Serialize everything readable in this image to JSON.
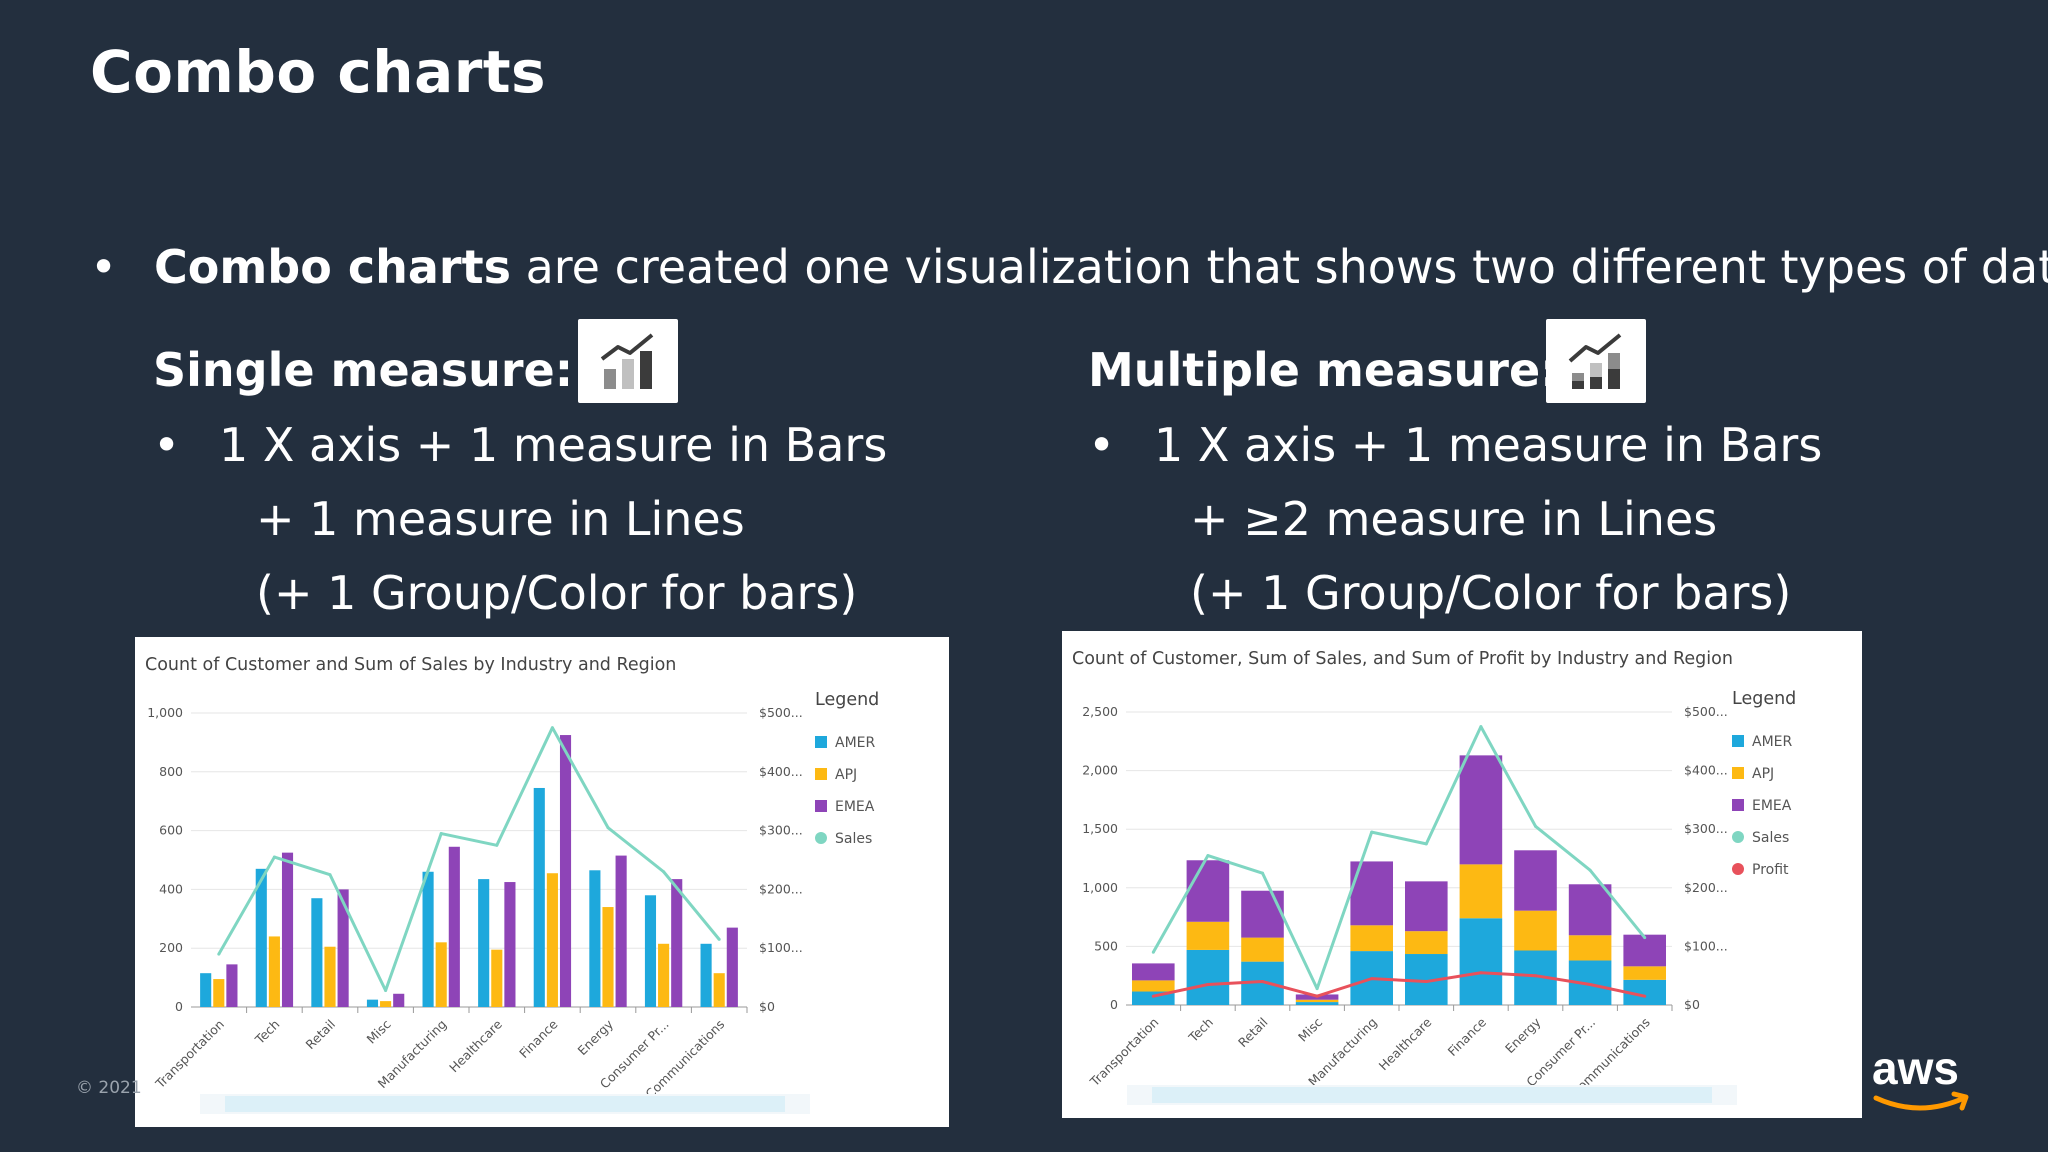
{
  "slide": {
    "title": "Combo charts",
    "bullet": {
      "bold": "Combo charts",
      "rest": " are created one visualization that shows two different types of data."
    },
    "copyright": "© 2021",
    "logo_text": "aws"
  },
  "left": {
    "heading": "Single measure:",
    "icon": "bar-line-combo-icon",
    "line1": "1 X axis + 1 measure in Bars",
    "line2": "+ 1 measure in Lines",
    "line3": "(+ 1  Group/Color for bars)"
  },
  "right": {
    "heading": "Multiple measure:",
    "icon": "stacked-bar-line-combo-icon",
    "line1": "1 X axis + 1 measure in Bars",
    "line2": "+ ≥2 measure in Lines",
    "line3": "(+ 1 Group/Color for bars)"
  },
  "colors": {
    "AMER": "#1ea8dc",
    "APJ": "#fdb913",
    "EMEA": "#8e44b7",
    "Sales": "#7fd6c2",
    "Profit": "#e8515b"
  },
  "chart_data": [
    {
      "type": "bar",
      "mode": "clustered",
      "title": "Count of Customer and Sum of Sales by Industry and Region",
      "legend_title": "Legend",
      "legend": [
        "AMER",
        "APJ",
        "EMEA",
        "Sales"
      ],
      "categories": [
        "Transportation",
        "Tech",
        "Retail",
        "Misc",
        "Manufacturing",
        "Healthcare",
        "Finance",
        "Energy",
        "Consumer Pr...",
        "Communications"
      ],
      "ylim": [
        0,
        1000
      ],
      "yticks": [
        0,
        200,
        400,
        600,
        800,
        "1,000"
      ],
      "y2ticks": [
        "$0",
        "$100...",
        "$200...",
        "$300...",
        "$400...",
        "$500..."
      ],
      "y2max": 500,
      "series": [
        {
          "name": "AMER",
          "values": [
            115,
            470,
            370,
            25,
            460,
            435,
            745,
            465,
            380,
            215
          ]
        },
        {
          "name": "APJ",
          "values": [
            95,
            240,
            205,
            20,
            220,
            195,
            455,
            340,
            215,
            115
          ]
        },
        {
          "name": "EMEA",
          "values": [
            145,
            525,
            400,
            45,
            545,
            425,
            925,
            515,
            435,
            270
          ]
        }
      ],
      "lines": [
        {
          "name": "Sales",
          "axis": "right",
          "values": [
            90,
            255,
            225,
            28,
            295,
            275,
            475,
            305,
            230,
            115
          ]
        }
      ]
    },
    {
      "type": "bar",
      "mode": "stacked",
      "title": "Count of Customer, Sum of Sales, and Sum of Profit by Industry and Region",
      "legend_title": "Legend",
      "legend": [
        "AMER",
        "APJ",
        "EMEA",
        "Sales",
        "Profit"
      ],
      "categories": [
        "Transportation",
        "Tech",
        "Retail",
        "Misc",
        "Manufacturing",
        "Healthcare",
        "Finance",
        "Energy",
        "Consumer Pr...",
        "Communications"
      ],
      "ylim": [
        0,
        2500
      ],
      "yticks": [
        0,
        500,
        "1,000",
        "1,500",
        "2,000",
        "2,500"
      ],
      "y2ticks": [
        "$0",
        "$100...",
        "$200...",
        "$300...",
        "$400...",
        "$500..."
      ],
      "y2max": 500,
      "series": [
        {
          "name": "AMER",
          "values": [
            115,
            470,
            370,
            25,
            460,
            435,
            740,
            465,
            380,
            215
          ]
        },
        {
          "name": "APJ",
          "values": [
            95,
            240,
            205,
            20,
            220,
            195,
            460,
            340,
            215,
            115
          ]
        },
        {
          "name": "EMEA",
          "values": [
            145,
            525,
            400,
            45,
            545,
            425,
            930,
            515,
            435,
            270
          ]
        }
      ],
      "lines": [
        {
          "name": "Sales",
          "axis": "right",
          "values": [
            90,
            255,
            225,
            28,
            295,
            275,
            475,
            305,
            230,
            115
          ]
        },
        {
          "name": "Profit",
          "axis": "right",
          "values": [
            15,
            35,
            40,
            15,
            45,
            40,
            55,
            50,
            35,
            15
          ]
        }
      ]
    }
  ]
}
